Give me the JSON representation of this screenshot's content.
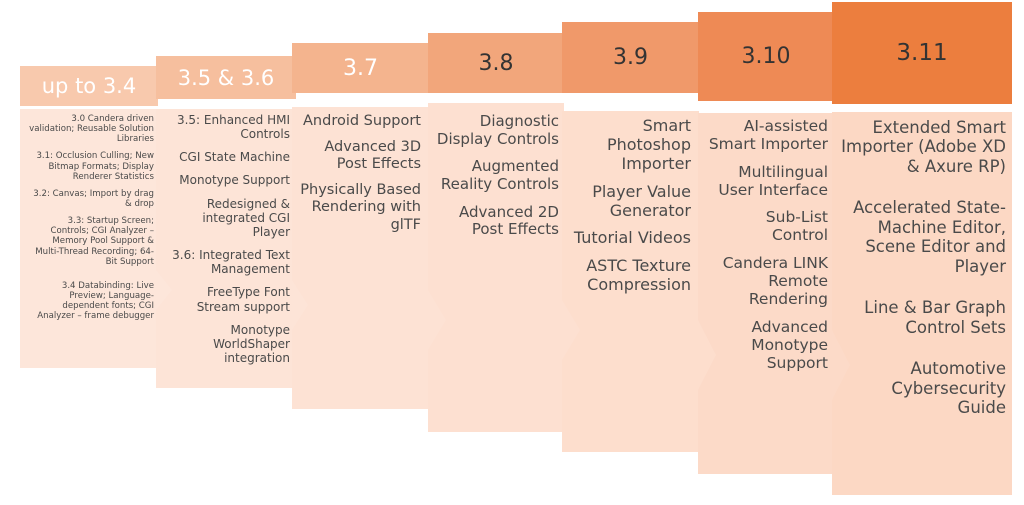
{
  "versions": [
    {
      "label": "up to 3.4",
      "header_color": "#f8c9ad",
      "label_color": "#ffffff",
      "items": [
        "3.0 Candera driven validation; Reusable Solution Libraries",
        "3.1: Occlusion Culling; New Bitmap Formats; Display Renderer Statistics",
        "3.2: Canvas; Import by drag & drop",
        "3.3: Startup Screen; Controls; CGI Analyzer – Memory Pool Support & Multi-Thread Recording; 64-Bit Support",
        "3.4 Databinding: Live Preview; Language-dependent fonts;  CGI Analyzer – frame debugger"
      ]
    },
    {
      "label": "3.5 & 3.6",
      "header_color": "#f6bf9e",
      "label_color": "#ffffff",
      "items": [
        "3.5: Enhanced HMI Controls",
        "CGI State Machine",
        "Monotype Support",
        "Redesigned & integrated CGI Player",
        "3.6: Integrated Text Management",
        "FreeType Font Stream support",
        "Monotype WorldShaper integration"
      ]
    },
    {
      "label": "3.7",
      "header_color": "#f4b48e",
      "label_color": "#ffffff",
      "items": [
        "Android Support",
        "Advanced 3D Post Effects",
        "Physically Based Rendering with glTF"
      ]
    },
    {
      "label": "3.8",
      "header_color": "#f2a67b",
      "label_color": "#333333",
      "items": [
        "Diagnostic Display Controls",
        "Augmented Reality Controls",
        "Advanced 2D Post Effects"
      ]
    },
    {
      "label": "3.9",
      "header_color": "#f0996a",
      "label_color": "#333333",
      "items": [
        "Smart Photoshop Importer",
        "Player Value Generator",
        "Tutorial Videos",
        "ASTC Texture Compression"
      ]
    },
    {
      "label": "3.10",
      "header_color": "#ee8a55",
      "label_color": "#333333",
      "items": [
        "AI-assisted Smart Importer",
        "Multilingual User Interface",
        "Sub-List Control",
        "Candera LINK Remote Rendering",
        "Advanced Monotype Support"
      ]
    },
    {
      "label": "3.11",
      "header_color": "#ec7e3e",
      "label_color": "#333333",
      "items": [
        "Extended Smart Importer (Adobe XD & Axure RP)",
        "Accelerated State-Machine Editor, Scene Editor and Player",
        "Line & Bar Graph Control Sets",
        "Automotive Cybersecurity Guide"
      ]
    }
  ]
}
